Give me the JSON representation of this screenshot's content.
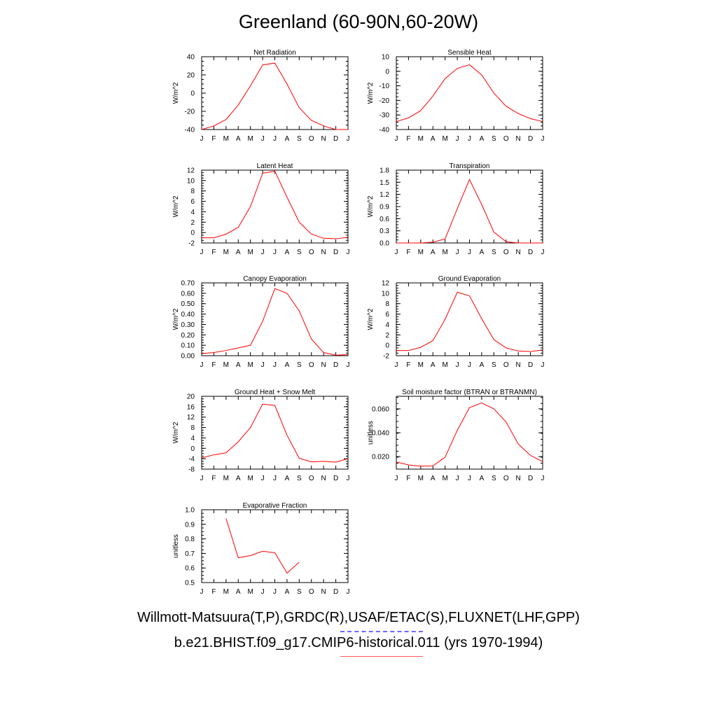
{
  "title": "Greenland (60-90N,60-20W)",
  "legend": {
    "observed_label": "Willmott-Matsuura(T,P),GRDC(R),USAF/ETAC(S),FLUXNET(LHF,GPP)",
    "observed_color": "#6a6aff",
    "model_label": "b.e21.BHIST.f09_g17.CMIP6-historical.011 (yrs 1970-1994)",
    "model_color": "#ff0000"
  },
  "chart_data": [
    {
      "type": "line",
      "title": "Net Radiation",
      "ylabel": "W/m^2",
      "categories": [
        "J",
        "F",
        "M",
        "A",
        "M",
        "J",
        "J",
        "A",
        "S",
        "O",
        "N",
        "D",
        "J"
      ],
      "ylim": [
        -40,
        40
      ],
      "yticks": [
        -40,
        -20,
        0,
        20,
        40
      ],
      "ytick_labels": [
        "-40",
        "-20",
        "0",
        "20",
        "40"
      ],
      "series": [
        {
          "values": [
            -40,
            -36,
            -29,
            -13,
            8,
            31,
            33,
            10,
            -16,
            -30,
            -36,
            -40,
            -40
          ]
        }
      ]
    },
    {
      "type": "line",
      "title": "Sensible Heat",
      "ylabel": "W/m^2",
      "categories": [
        "J",
        "F",
        "M",
        "A",
        "M",
        "J",
        "J",
        "A",
        "S",
        "O",
        "N",
        "D",
        "J"
      ],
      "ylim": [
        -40,
        10
      ],
      "yticks": [
        -40,
        -30,
        -20,
        -10,
        0,
        10
      ],
      "ytick_labels": [
        "-40",
        "-30",
        "-20",
        "-10",
        "0",
        "10"
      ],
      "series": [
        {
          "values": [
            -34.5,
            -32,
            -27,
            -17,
            -5,
            2,
            4.5,
            -2.5,
            -15,
            -24,
            -29,
            -32.5,
            -34.5
          ]
        }
      ]
    },
    {
      "type": "line",
      "title": "Latent Heat",
      "ylabel": "W/m^2",
      "categories": [
        "J",
        "F",
        "M",
        "A",
        "M",
        "J",
        "J",
        "A",
        "S",
        "O",
        "N",
        "D",
        "J"
      ],
      "ylim": [
        -2,
        12
      ],
      "yticks": [
        -2,
        0,
        2,
        4,
        6,
        8,
        10,
        12
      ],
      "ytick_labels": [
        "-2",
        "0",
        "2",
        "4",
        "6",
        "8",
        "10",
        "12"
      ],
      "series": [
        {
          "values": [
            -1,
            -1,
            -0.3,
            1,
            5,
            11.4,
            11.8,
            6.8,
            2,
            -0.3,
            -1.1,
            -1.2,
            -0.9
          ]
        }
      ]
    },
    {
      "type": "line",
      "title": "Transpiration",
      "ylabel": "W/m^2",
      "categories": [
        "J",
        "F",
        "M",
        "A",
        "M",
        "J",
        "J",
        "A",
        "S",
        "O",
        "N",
        "D",
        "J"
      ],
      "ylim": [
        0,
        1.8
      ],
      "yticks": [
        0,
        0.3,
        0.6,
        0.9,
        1.2,
        1.5,
        1.8
      ],
      "ytick_labels": [
        "0.0",
        "0.3",
        "0.6",
        "0.9",
        "1.2",
        "1.5",
        "1.8"
      ],
      "series": [
        {
          "values": [
            0,
            0,
            0,
            0.02,
            0.1,
            0.85,
            1.57,
            0.95,
            0.27,
            0.03,
            0,
            0,
            0
          ]
        }
      ]
    },
    {
      "type": "line",
      "title": "Canopy Evaporation",
      "ylabel": "W/m^2",
      "categories": [
        "J",
        "F",
        "M",
        "A",
        "M",
        "J",
        "J",
        "A",
        "S",
        "O",
        "N",
        "D",
        "J"
      ],
      "ylim": [
        0,
        0.7
      ],
      "yticks": [
        0,
        0.1,
        0.2,
        0.3,
        0.4,
        0.5,
        0.6,
        0.7
      ],
      "ytick_labels": [
        "0.00",
        "0.10",
        "0.20",
        "0.30",
        "0.40",
        "0.50",
        "0.60",
        "0.70"
      ],
      "series": [
        {
          "values": [
            0.02,
            0.03,
            0.05,
            0.075,
            0.1,
            0.33,
            0.645,
            0.6,
            0.43,
            0.16,
            0.03,
            0.005,
            0.01
          ]
        }
      ]
    },
    {
      "type": "line",
      "title": "Ground Evaporation",
      "ylabel": "W/m^2",
      "categories": [
        "J",
        "F",
        "M",
        "A",
        "M",
        "J",
        "J",
        "A",
        "S",
        "O",
        "N",
        "D",
        "J"
      ],
      "ylim": [
        -2,
        12
      ],
      "yticks": [
        -2,
        0,
        2,
        4,
        6,
        8,
        10,
        12
      ],
      "ytick_labels": [
        "-2",
        "0",
        "2",
        "4",
        "6",
        "8",
        "10",
        "12"
      ],
      "series": [
        {
          "values": [
            -1,
            -1,
            -0.4,
            0.9,
            5,
            10.2,
            9.5,
            5.1,
            1.1,
            -0.5,
            -1.1,
            -1.2,
            -0.9
          ]
        }
      ]
    },
    {
      "type": "line",
      "title": "Ground Heat + Snow Melt",
      "ylabel": "W/m^2",
      "categories": [
        "J",
        "F",
        "M",
        "A",
        "M",
        "J",
        "J",
        "A",
        "S",
        "O",
        "N",
        "D",
        "J"
      ],
      "ylim": [
        -8,
        20
      ],
      "yticks": [
        -8,
        -4,
        0,
        4,
        8,
        12,
        16,
        20
      ],
      "ytick_labels": [
        "-8",
        "-4",
        "0",
        "4",
        "8",
        "12",
        "16",
        "20"
      ],
      "series": [
        {
          "values": [
            -3.7,
            -2.5,
            -1.7,
            2.5,
            8,
            17,
            16.5,
            5,
            -3.8,
            -5.2,
            -5,
            -5.3,
            -4
          ]
        }
      ]
    },
    {
      "type": "line",
      "title": "Soil moisture factor (BTRAN or BTRANMN)",
      "ylabel": "unitless",
      "categories": [
        "J",
        "F",
        "M",
        "A",
        "M",
        "J",
        "J",
        "A",
        "S",
        "O",
        "N",
        "D",
        "J"
      ],
      "ylim": [
        0.0095,
        0.0705
      ],
      "yticks": [
        0.02,
        0.04,
        0.06
      ],
      "ytick_labels": [
        "0.020",
        "0.040",
        "0.060"
      ],
      "series": [
        {
          "values": [
            0.0155,
            0.013,
            0.012,
            0.0122,
            0.0195,
            0.042,
            0.061,
            0.065,
            0.06,
            0.049,
            0.0305,
            0.021,
            0.0158
          ]
        }
      ]
    },
    {
      "type": "line",
      "title": "Evaporative Fraction",
      "ylabel": "unitless",
      "categories": [
        "J",
        "F",
        "M",
        "A",
        "M",
        "J",
        "J",
        "A",
        "S",
        "O",
        "N",
        "D",
        "J"
      ],
      "ylim": [
        0.5,
        1.0
      ],
      "yticks": [
        0.5,
        0.6,
        0.7,
        0.8,
        0.9,
        1.0
      ],
      "ytick_labels": [
        "0.5",
        "0.6",
        "0.7",
        "0.8",
        "0.9",
        "1.0"
      ],
      "series": [
        {
          "values": [
            null,
            null,
            0.94,
            0.67,
            0.685,
            0.715,
            0.705,
            0.565,
            0.64,
            null,
            null,
            null,
            null
          ]
        }
      ]
    }
  ]
}
